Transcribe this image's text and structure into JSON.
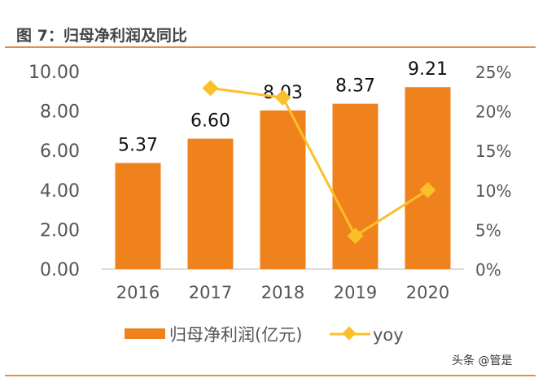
{
  "title": "图 7：归母净利润及同比",
  "watermark": "头条 @管是",
  "chart_data": {
    "type": "bar+line",
    "categories": [
      "2016",
      "2017",
      "2018",
      "2019",
      "2020"
    ],
    "series": [
      {
        "name": "归母净利润(亿元)",
        "type": "bar",
        "axis": "left",
        "values": [
          5.37,
          6.6,
          8.03,
          8.37,
          9.21
        ],
        "labels": [
          "5.37",
          "6.60",
          "8.03",
          "8.37",
          "9.21"
        ],
        "color": "#f0821e"
      },
      {
        "name": "yoy",
        "type": "line",
        "axis": "right",
        "values": [
          null,
          22.9,
          21.7,
          4.2,
          10.0
        ],
        "color": "#fbbf2a"
      }
    ],
    "left_axis": {
      "ylim": [
        0,
        10
      ],
      "ticks": [
        "0.00",
        "2.00",
        "4.00",
        "6.00",
        "8.00",
        "10.00"
      ]
    },
    "right_axis": {
      "ylim": [
        0,
        25
      ],
      "ticks": [
        "0%",
        "5%",
        "10%",
        "15%",
        "20%",
        "25%"
      ]
    },
    "grid": false,
    "legend": "bottom"
  }
}
